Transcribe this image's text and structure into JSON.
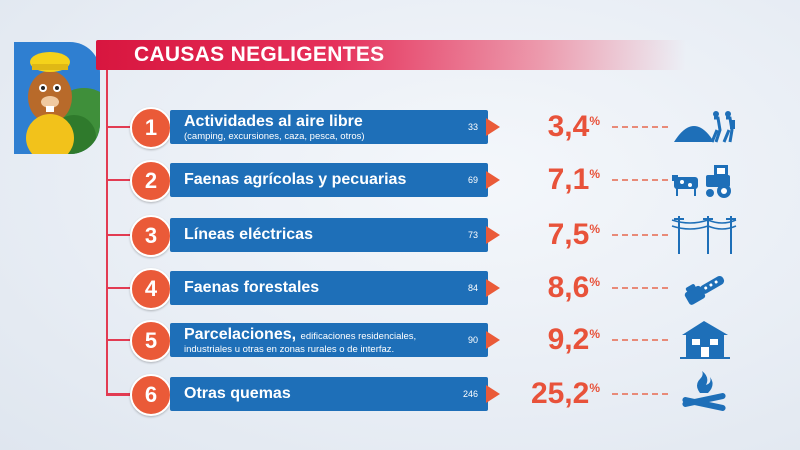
{
  "title": "CAUSAS NEGLIGENTES",
  "colors": {
    "accent": "#d8163f",
    "bar": "#1e6fb8",
    "number": "#ea5a38",
    "percent": "#e8523a"
  },
  "chart_data": {
    "type": "bar",
    "title": "CAUSAS NEGLIGENTES",
    "categories": [
      "Actividades al aire libre",
      "Faenas agrícolas y pecuarias",
      "Líneas eléctricas",
      "Faenas forestales",
      "Parcelaciones,",
      "Otras quemas"
    ],
    "counts": [
      33,
      69,
      73,
      84,
      90,
      246
    ],
    "percentages": [
      3.4,
      7.1,
      7.5,
      8.6,
      9.2,
      25.2
    ]
  },
  "rows": [
    {
      "num": "1",
      "label": "Actividades al aire libre",
      "sub": "(camping, excursiones, caza, pesca, otros)",
      "count": "33",
      "pct": "3,4",
      "unit": "%",
      "icon": "camping-hikers-icon"
    },
    {
      "num": "2",
      "label": "Faenas agrícolas y pecuarias",
      "sub": "",
      "count": "69",
      "pct": "7,1",
      "unit": "%",
      "icon": "cow-tractor-icon"
    },
    {
      "num": "3",
      "label": "Líneas eléctricas",
      "sub": "",
      "count": "73",
      "pct": "7,5",
      "unit": "%",
      "icon": "power-lines-icon"
    },
    {
      "num": "4",
      "label": "Faenas forestales",
      "sub": "",
      "count": "84",
      "pct": "8,6",
      "unit": "%",
      "icon": "chainsaw-icon"
    },
    {
      "num": "5",
      "label": "Parcelaciones,",
      "sub_inline": "edificaciones residenciales,",
      "sub": "industriales u otras en zonas rurales o de interfaz.",
      "count": "90",
      "pct": "9,2",
      "unit": "%",
      "icon": "house-icon"
    },
    {
      "num": "6",
      "label": "Otras quemas",
      "sub": "",
      "count": "246",
      "pct": "25,2",
      "unit": "%",
      "icon": "bonfire-icon"
    }
  ]
}
